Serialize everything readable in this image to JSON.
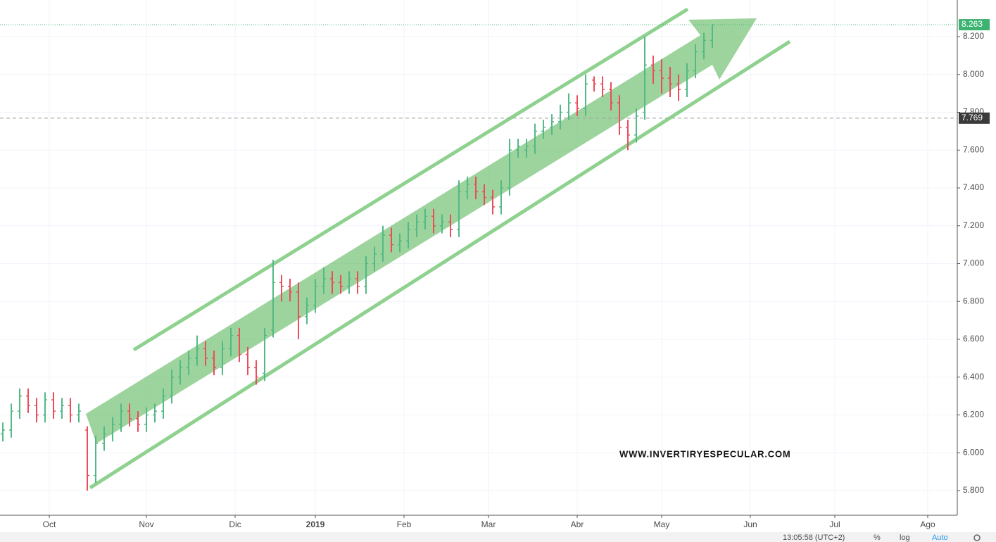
{
  "chart_data": {
    "type": "ohlc",
    "up_color": "#53b987",
    "down_color": "#eb4d5c",
    "open": [
      6.1,
      6.12,
      6.22,
      6.3,
      6.25,
      6.2,
      6.28,
      6.22,
      6.25,
      6.2,
      6.12,
      5.88,
      6.05,
      6.1,
      6.15,
      6.22,
      6.18,
      6.15,
      6.2,
      6.22,
      6.3,
      6.4,
      6.45,
      6.5,
      6.55,
      6.5,
      6.45,
      6.55,
      6.62,
      6.52,
      6.45,
      6.42,
      6.65,
      6.9,
      6.88,
      6.85,
      6.72,
      6.78,
      6.88,
      6.92,
      6.9,
      6.88,
      6.92,
      6.88,
      7.0,
      7.05,
      7.15,
      7.1,
      7.12,
      7.18,
      7.22,
      7.25,
      7.2,
      7.22,
      7.18,
      7.38,
      7.42,
      7.38,
      7.35,
      7.3,
      7.4,
      7.6,
      7.6,
      7.62,
      7.7,
      7.72,
      7.75,
      7.8,
      7.85,
      7.82,
      7.97,
      7.95,
      7.92,
      7.85,
      7.72,
      7.68,
      7.8,
      8.05,
      8.02,
      7.98,
      7.95,
      7.92,
      8.02,
      8.12,
      8.18
    ],
    "high": [
      6.16,
      6.26,
      6.34,
      6.34,
      6.29,
      6.32,
      6.32,
      6.29,
      6.29,
      6.26,
      6.14,
      6.09,
      6.14,
      6.19,
      6.26,
      6.26,
      6.22,
      6.24,
      6.26,
      6.34,
      6.44,
      6.49,
      6.54,
      6.62,
      6.59,
      6.54,
      6.59,
      6.66,
      6.66,
      6.56,
      6.49,
      6.66,
      7.02,
      6.94,
      6.92,
      6.9,
      6.82,
      6.92,
      6.98,
      6.96,
      6.94,
      6.96,
      6.96,
      7.04,
      7.09,
      7.2,
      7.19,
      7.16,
      7.22,
      7.26,
      7.29,
      7.29,
      7.26,
      7.26,
      7.44,
      7.46,
      7.46,
      7.42,
      7.39,
      7.44,
      7.66,
      7.66,
      7.66,
      7.74,
      7.76,
      7.79,
      7.84,
      7.9,
      7.89,
      8.0,
      7.99,
      7.99,
      7.96,
      7.89,
      7.76,
      7.82,
      8.2,
      8.1,
      8.08,
      8.04,
      8.0,
      8.06,
      8.16,
      8.22,
      8.263
    ],
    "low": [
      6.06,
      6.08,
      6.18,
      6.21,
      6.16,
      6.16,
      6.18,
      6.18,
      6.16,
      6.16,
      5.8,
      5.84,
      6.01,
      6.06,
      6.11,
      6.14,
      6.11,
      6.11,
      6.16,
      6.18,
      6.26,
      6.36,
      6.41,
      6.46,
      6.46,
      6.41,
      6.41,
      6.51,
      6.48,
      6.41,
      6.36,
      6.38,
      6.61,
      6.8,
      6.8,
      6.6,
      6.68,
      6.74,
      6.84,
      6.84,
      6.84,
      6.84,
      6.84,
      6.84,
      6.96,
      7.01,
      7.06,
      7.06,
      7.08,
      7.14,
      7.18,
      7.16,
      7.16,
      7.14,
      7.14,
      7.34,
      7.34,
      7.31,
      7.26,
      7.26,
      7.36,
      7.56,
      7.56,
      7.58,
      7.66,
      7.68,
      7.71,
      7.76,
      7.78,
      7.78,
      7.91,
      7.88,
      7.81,
      7.68,
      7.6,
      7.64,
      7.76,
      7.95,
      7.9,
      7.88,
      7.86,
      7.88,
      7.98,
      8.08,
      8.14
    ],
    "close": [
      6.12,
      6.22,
      6.3,
      6.25,
      6.2,
      6.28,
      6.22,
      6.25,
      6.2,
      6.22,
      5.88,
      6.05,
      6.1,
      6.15,
      6.22,
      6.18,
      6.15,
      6.2,
      6.22,
      6.3,
      6.4,
      6.45,
      6.5,
      6.55,
      6.5,
      6.45,
      6.55,
      6.62,
      6.52,
      6.45,
      6.4,
      6.62,
      6.9,
      6.88,
      6.85,
      6.72,
      6.78,
      6.88,
      6.92,
      6.9,
      6.88,
      6.92,
      6.88,
      7.0,
      7.05,
      7.15,
      7.1,
      7.12,
      7.18,
      7.22,
      7.25,
      7.2,
      7.22,
      7.18,
      7.38,
      7.42,
      7.38,
      7.35,
      7.3,
      7.4,
      7.6,
      7.62,
      7.62,
      7.7,
      7.72,
      7.75,
      7.8,
      7.85,
      7.82,
      7.95,
      7.95,
      7.92,
      7.85,
      7.72,
      7.68,
      7.78,
      8.05,
      8.02,
      7.98,
      7.95,
      7.92,
      8.02,
      8.12,
      8.18,
      8.263
    ],
    "xlim": [
      -0.333,
      113
    ],
    "xticks": [
      {
        "value": 5.5,
        "label": "Oct"
      },
      {
        "value": 17,
        "label": "Nov"
      },
      {
        "value": 27.5,
        "label": "Dic"
      },
      {
        "value": 37,
        "label": "2019"
      },
      {
        "value": 47.5,
        "label": "Feb"
      },
      {
        "value": 57.5,
        "label": "Mar"
      },
      {
        "value": 68,
        "label": "Abr"
      },
      {
        "value": 78,
        "label": "May"
      },
      {
        "value": 88.5,
        "label": "Jun"
      },
      {
        "value": 98.5,
        "label": "Jul"
      },
      {
        "value": 109.5,
        "label": "Ago"
      }
    ],
    "ylim": [
      5.6698,
      8.3935
    ],
    "yticks": [
      {
        "value": 5.8,
        "label": "5.800"
      },
      {
        "value": 6.0,
        "label": "6.000"
      },
      {
        "value": 6.2,
        "label": "6.200"
      },
      {
        "value": 6.4,
        "label": "6.400"
      },
      {
        "value": 6.6,
        "label": "6.600"
      },
      {
        "value": 6.8,
        "label": "6.800"
      },
      {
        "value": 7.0,
        "label": "7.000"
      },
      {
        "value": 7.2,
        "label": "7.200"
      },
      {
        "value": 7.4,
        "label": "7.400"
      },
      {
        "value": 7.6,
        "label": "7.600"
      },
      {
        "value": 7.8,
        "label": "7.800"
      },
      {
        "value": 8.0,
        "label": "8.000"
      },
      {
        "value": 8.2,
        "label": "8.200"
      }
    ],
    "grid": true,
    "price_lines": [
      {
        "value": 8.263,
        "color": "#3cb371",
        "style": "dotted"
      },
      {
        "value": 7.769,
        "color": "#9e9e9e",
        "style": "dashed"
      }
    ],
    "watermark": "WWW.INVERTIRYESPECULAR.COM",
    "status_bar": {
      "time": "13:05:58 (UTC+2)",
      "percent": "%",
      "log": "log",
      "auto": "Auto"
    }
  }
}
